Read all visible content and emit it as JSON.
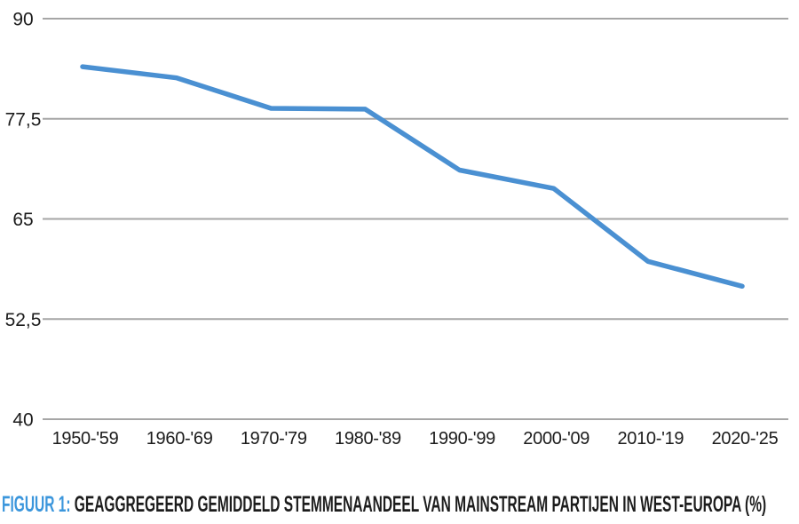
{
  "figure": {
    "label": "FIGUUR 1:",
    "title": "GEAGGREGEERD GEMIDDELD STEMMENAANDEEL VAN MAINSTREAM PARTIJEN IN WEST-EUROPA (%)"
  },
  "colors": {
    "line": "#4a90d2",
    "grid": "#a6a6a6",
    "text": "#1c1c1c",
    "caption_accent": "#3b96dc"
  },
  "chart_data": {
    "type": "line",
    "categories": [
      "1950-'59",
      "1960-'69",
      "1970-'79",
      "1980-'89",
      "1990-'99",
      "2000-'09",
      "2010-'19",
      "2020-'25"
    ],
    "values": [
      84.0,
      82.6,
      78.8,
      78.7,
      71.1,
      68.8,
      59.7,
      56.6
    ],
    "yticks": [
      90,
      77.5,
      65,
      52.5,
      40
    ],
    "ytick_labels": [
      "90",
      "77,5",
      "65",
      "52,5",
      "40"
    ],
    "ylim": [
      40,
      90
    ],
    "title": "GEAGGREGEERD GEMIDDELD STEMMENAANDEEL VAN MAINSTREAM PARTIJEN IN WEST-EUROPA (%)",
    "xlabel": "",
    "ylabel": "",
    "grid": "horizontal",
    "legend": "none",
    "line_width": 5.5
  }
}
